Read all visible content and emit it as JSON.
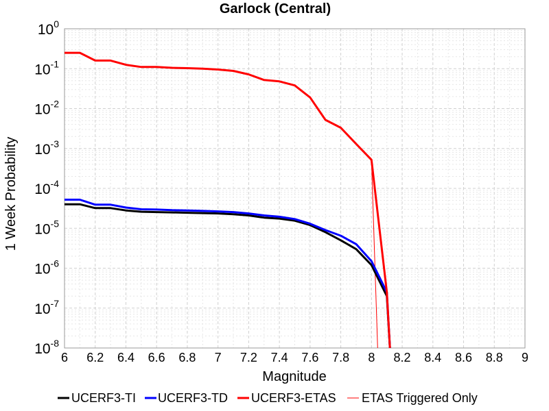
{
  "chart_data": {
    "type": "line",
    "title": "Garlock (Central)",
    "xlabel": "Magnitude",
    "ylabel": "1 Week Probability",
    "xlim": [
      6,
      9
    ],
    "ylim": [
      1e-08,
      1
    ],
    "yscale": "log",
    "grid": true,
    "legend_position": "bottom",
    "x_ticks": [
      "6",
      "6.2",
      "6.4",
      "6.6",
      "6.8",
      "7",
      "7.2",
      "7.4",
      "7.6",
      "7.8",
      "8",
      "8.2",
      "8.4",
      "8.6",
      "8.8",
      "9"
    ],
    "y_ticks": [
      {
        "base": "10",
        "exp": "0"
      },
      {
        "base": "10",
        "exp": "-1"
      },
      {
        "base": "10",
        "exp": "-2"
      },
      {
        "base": "10",
        "exp": "-3"
      },
      {
        "base": "10",
        "exp": "-4"
      },
      {
        "base": "10",
        "exp": "-5"
      },
      {
        "base": "10",
        "exp": "-6"
      },
      {
        "base": "10",
        "exp": "-7"
      },
      {
        "base": "10",
        "exp": "-8"
      }
    ],
    "series": [
      {
        "name": "UCERF3-TI",
        "color": "#000000",
        "width": 3,
        "x": [
          6.0,
          6.1,
          6.2,
          6.3,
          6.4,
          6.5,
          6.6,
          6.7,
          6.8,
          6.9,
          7.0,
          7.1,
          7.2,
          7.3,
          7.4,
          7.5,
          7.6,
          7.7,
          7.8,
          7.9,
          8.0,
          8.1,
          8.12
        ],
        "y": [
          4e-05,
          4e-05,
          3.2e-05,
          3.2e-05,
          2.8e-05,
          2.6e-05,
          2.55e-05,
          2.5e-05,
          2.45e-05,
          2.4e-05,
          2.35e-05,
          2.25e-05,
          2.1e-05,
          1.85e-05,
          1.75e-05,
          1.55e-05,
          1.2e-05,
          8e-06,
          5e-06,
          3e-06,
          1.2e-06,
          2e-07,
          1e-09
        ]
      },
      {
        "name": "UCERF3-TD",
        "color": "#0000ff",
        "width": 3,
        "x": [
          6.0,
          6.1,
          6.2,
          6.3,
          6.4,
          6.5,
          6.6,
          6.7,
          6.8,
          6.9,
          7.0,
          7.1,
          7.2,
          7.3,
          7.4,
          7.5,
          7.6,
          7.7,
          7.8,
          7.9,
          8.0,
          8.1,
          8.12
        ],
        "y": [
          5.2e-05,
          5.2e-05,
          3.9e-05,
          3.9e-05,
          3.3e-05,
          3e-05,
          2.95e-05,
          2.85e-05,
          2.8e-05,
          2.72e-05,
          2.65e-05,
          2.55e-05,
          2.35e-05,
          2.1e-05,
          1.95e-05,
          1.7e-05,
          1.3e-05,
          9e-06,
          6.5e-06,
          4e-06,
          1.5e-06,
          2.5e-07,
          1e-09
        ]
      },
      {
        "name": "UCERF3-ETAS",
        "color": "#ff0000",
        "width": 3,
        "x": [
          6.0,
          6.1,
          6.2,
          6.3,
          6.4,
          6.5,
          6.6,
          6.7,
          6.8,
          6.9,
          7.0,
          7.1,
          7.2,
          7.3,
          7.4,
          7.5,
          7.6,
          7.7,
          7.8,
          7.9,
          8.0,
          8.1,
          8.12
        ],
        "y": [
          0.25,
          0.25,
          0.16,
          0.16,
          0.125,
          0.11,
          0.11,
          0.105,
          0.103,
          0.1,
          0.095,
          0.088,
          0.072,
          0.052,
          0.048,
          0.038,
          0.019,
          0.0052,
          0.0033,
          0.0013,
          0.00052,
          2.5e-07,
          1e-09
        ]
      },
      {
        "name": "ETAS Triggered Only",
        "color": "#ff0000",
        "width": 1,
        "x": [
          6.0,
          6.1,
          6.2,
          6.3,
          6.4,
          6.5,
          6.6,
          6.7,
          6.8,
          6.9,
          7.0,
          7.1,
          7.2,
          7.3,
          7.4,
          7.5,
          7.6,
          7.7,
          7.8,
          7.9,
          8.0,
          8.04
        ],
        "y": [
          0.25,
          0.25,
          0.16,
          0.16,
          0.125,
          0.11,
          0.11,
          0.105,
          0.103,
          0.1,
          0.095,
          0.088,
          0.072,
          0.052,
          0.048,
          0.038,
          0.019,
          0.0052,
          0.0033,
          0.0013,
          0.00052,
          1e-09
        ]
      }
    ]
  }
}
